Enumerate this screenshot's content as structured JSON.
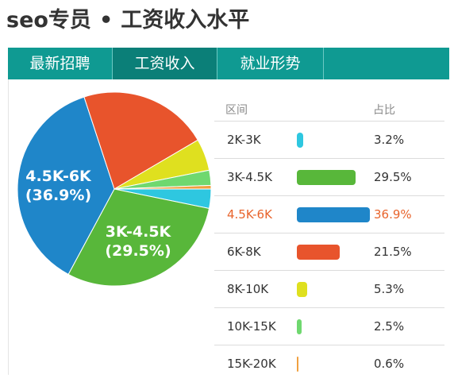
{
  "header": {
    "title": "seo专员",
    "dot": "•",
    "subtitle": "工资收入水平"
  },
  "tabs": [
    {
      "label": "最新招聘"
    },
    {
      "label": "工资收入"
    },
    {
      "label": "就业形势"
    }
  ],
  "colors": {
    "tab_bg": "#0f9a92",
    "tab_active": "#0b7f78",
    "highlight_text": "#e8642c"
  },
  "chart_data": {
    "type": "pie",
    "legend_headers": {
      "range": "区间",
      "share": "占比"
    },
    "slices": [
      {
        "range": "2K-3K",
        "value": 3.2,
        "label": "3.2%",
        "color": "#2ec7e0"
      },
      {
        "range": "3K-4.5K",
        "value": 29.5,
        "label": "29.5%",
        "color": "#58b73a"
      },
      {
        "range": "4.5K-6K",
        "value": 36.9,
        "label": "36.9%",
        "color": "#1f86c9"
      },
      {
        "range": "6K-8K",
        "value": 21.5,
        "label": "21.5%",
        "color": "#e8542c"
      },
      {
        "range": "8K-10K",
        "value": 5.3,
        "label": "5.3%",
        "color": "#dfe01f"
      },
      {
        "range": "10K-15K",
        "value": 2.5,
        "label": "2.5%",
        "color": "#6fd86f"
      },
      {
        "range": "15K-20K",
        "value": 0.6,
        "label": "0.6%",
        "color": "#f0a040"
      }
    ],
    "pie_labels": [
      {
        "range": "4.5K-6K",
        "line1": "4.5K-6K",
        "line2": "(36.9%)"
      },
      {
        "range": "3K-4.5K",
        "line1": "3K-4.5K",
        "line2": "(29.5%)"
      }
    ],
    "highlighted": "4.5K-6K",
    "start_angle_deg": 90,
    "direction": "clockwise"
  }
}
